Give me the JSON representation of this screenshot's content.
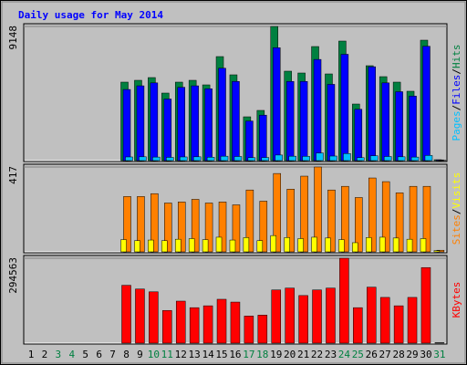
{
  "chart_data": [
    {
      "type": "bar",
      "title": "Daily usage for May 2014",
      "categories": [
        "1",
        "2",
        "3",
        "4",
        "5",
        "6",
        "7",
        "8",
        "9",
        "10",
        "11",
        "12",
        "13",
        "14",
        "15",
        "16",
        "17",
        "18",
        "19",
        "20",
        "21",
        "22",
        "23",
        "24",
        "25",
        "26",
        "27",
        "28",
        "29",
        "30",
        "31"
      ],
      "category_colors": [
        "#000000",
        "#000000",
        "#008040",
        "#008040",
        "#000000",
        "#000000",
        "#000000",
        "#000000",
        "#000000",
        "#008040",
        "#008040",
        "#000000",
        "#000000",
        "#000000",
        "#000000",
        "#000000",
        "#008040",
        "#008040",
        "#000000",
        "#000000",
        "#000000",
        "#000000",
        "#000000",
        "#008040",
        "#008040",
        "#000000",
        "#000000",
        "#000000",
        "#000000",
        "#000000",
        "#008040"
      ],
      "legend_separator": "/",
      "ylim": [
        0,
        9148
      ],
      "yticks": [
        9148
      ],
      "series": [
        {
          "name": "Hits",
          "color": "#008040",
          "values": [
            0,
            0,
            0,
            0,
            0,
            0,
            0,
            5352,
            5476,
            5663,
            4605,
            5352,
            5476,
            5165,
            7094,
            5850,
            2987,
            3423,
            9148,
            6099,
            5974,
            7779,
            5912,
            8152,
            3858,
            6472,
            5725,
            5352,
            4730,
            8214,
            60
          ]
        },
        {
          "name": "Files",
          "color": "#0000ff",
          "values": [
            0,
            0,
            0,
            0,
            0,
            0,
            0,
            4850,
            5100,
            5300,
            4200,
            5000,
            5100,
            4900,
            6300,
            5400,
            2700,
            3100,
            7700,
            5400,
            5400,
            6900,
            5200,
            7250,
            3500,
            6400,
            5300,
            4700,
            4400,
            7800,
            50
          ]
        },
        {
          "name": "Pages",
          "color": "#00c0ff",
          "values": [
            0,
            0,
            0,
            0,
            0,
            0,
            0,
            250,
            260,
            240,
            220,
            250,
            260,
            230,
            300,
            280,
            200,
            210,
            380,
            300,
            290,
            520,
            310,
            480,
            200,
            330,
            280,
            260,
            240,
            350,
            20
          ]
        }
      ]
    },
    {
      "type": "bar",
      "ylim": [
        0,
        417
      ],
      "yticks": [
        417
      ],
      "series": [
        {
          "name": "Visits",
          "color": "#ffff00",
          "values": [
            0,
            0,
            0,
            0,
            0,
            0,
            0,
            60,
            55,
            58,
            55,
            62,
            65,
            60,
            72,
            58,
            70,
            55,
            80,
            70,
            65,
            72,
            68,
            60,
            45,
            70,
            72,
            68,
            62,
            65,
            6
          ]
        },
        {
          "name": "Sites",
          "color": "#ff8000",
          "values": [
            0,
            0,
            0,
            0,
            0,
            0,
            0,
            272,
            272,
            286,
            240,
            245,
            258,
            240,
            245,
            231,
            304,
            249,
            385,
            308,
            372,
            417,
            304,
            322,
            267,
            363,
            345,
            290,
            322,
            322,
            8
          ]
        }
      ]
    },
    {
      "type": "bar",
      "ylim": [
        0,
        294563
      ],
      "yticks": [
        294563
      ],
      "series": [
        {
          "name": "KBytes",
          "color": "#ff0000",
          "values": [
            0,
            0,
            0,
            0,
            0,
            0,
            0,
            200700,
            187700,
            178000,
            113300,
            145700,
            123000,
            129500,
            152100,
            142400,
            93900,
            97100,
            184500,
            191000,
            165100,
            184500,
            191000,
            294563,
            123000,
            194200,
            158600,
            129500,
            158600,
            262200,
            1500
          ]
        }
      ]
    }
  ]
}
